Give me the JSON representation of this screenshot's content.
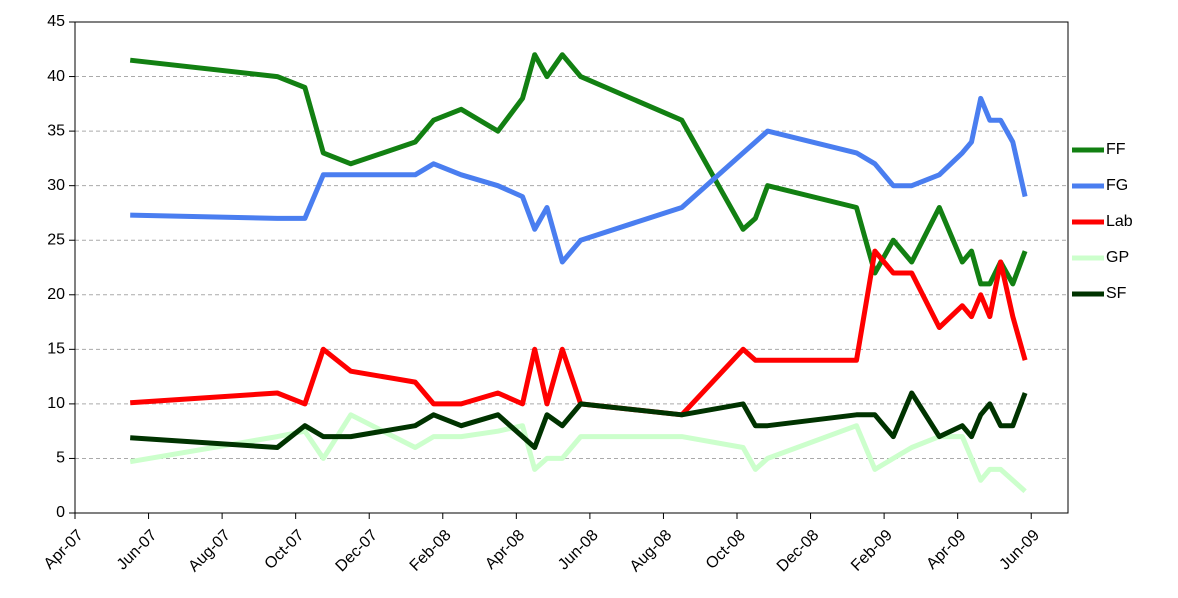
{
  "chart_data": {
    "type": "line",
    "x": [
      "2007-05",
      "2007-09",
      "2007-10",
      "2007-10",
      "2007-11",
      "2008-01",
      "2008-01",
      "2008-02",
      "2008-03",
      "2008-04",
      "2008-04",
      "2008-04",
      "2008-05",
      "2008-05",
      "2008-08",
      "2008-10",
      "2008-10",
      "2008-10",
      "2009-01",
      "2009-01",
      "2009-02",
      "2009-02",
      "2009-03",
      "2009-04",
      "2009-04",
      "2009-04",
      "2009-04",
      "2009-05",
      "2009-05",
      "2009-05"
    ],
    "series": [
      {
        "name": "FF",
        "color": "#128012",
        "values": [
          41.5,
          40,
          39,
          33,
          32,
          34,
          36,
          37,
          35,
          38,
          42,
          40,
          42,
          40,
          36,
          26,
          27,
          30,
          28,
          22,
          25,
          23,
          28,
          23,
          24,
          21,
          21,
          23,
          21,
          24
        ]
      },
      {
        "name": "FG",
        "color": "#4a7ef0",
        "values": [
          27.3,
          27,
          27,
          31,
          31,
          31,
          32,
          31,
          30,
          29,
          26,
          28,
          23,
          25,
          28,
          33,
          34,
          35,
          33,
          32,
          30,
          30,
          31,
          33,
          34,
          38,
          36,
          36,
          34,
          29
        ]
      },
      {
        "name": "Lab",
        "color": "#ff0000",
        "values": [
          10.1,
          11,
          10,
          15,
          13,
          12,
          10,
          10,
          11,
          10,
          15,
          10,
          15,
          10,
          9,
          15,
          14,
          14,
          14,
          24,
          22,
          22,
          17,
          19,
          18,
          20,
          18,
          23,
          18,
          14
        ]
      },
      {
        "name": "GP",
        "color": "#ccffcc",
        "values": [
          4.7,
          7,
          7.5,
          5,
          9,
          6,
          7,
          7,
          7.5,
          8,
          4,
          5,
          5,
          7,
          7,
          6,
          4,
          5,
          8,
          4,
          5,
          6,
          7,
          7,
          5,
          3,
          4,
          4,
          3,
          2
        ]
      },
      {
        "name": "SF",
        "color": "#003300",
        "values": [
          6.9,
          6,
          8,
          7,
          7,
          8,
          9,
          8,
          9,
          7,
          6,
          9,
          8,
          10,
          9,
          10,
          8,
          8,
          9,
          9,
          7,
          11,
          7,
          8,
          7,
          9,
          10,
          8,
          8,
          11
        ]
      }
    ],
    "xlim": [
      "2007-04",
      "2009-07"
    ],
    "xticks": [
      {
        "value": "2007-04",
        "label": "Apr-07"
      },
      {
        "value": "2007-06",
        "label": "Jun-07"
      },
      {
        "value": "2007-08",
        "label": "Aug-07"
      },
      {
        "value": "2007-10",
        "label": "Oct-07"
      },
      {
        "value": "2007-12",
        "label": "Dec-07"
      },
      {
        "value": "2008-02",
        "label": "Feb-08"
      },
      {
        "value": "2008-04",
        "label": "Apr-08"
      },
      {
        "value": "2008-06",
        "label": "Jun-08"
      },
      {
        "value": "2008-08",
        "label": "Aug-08"
      },
      {
        "value": "2008-10",
        "label": "Oct-08"
      },
      {
        "value": "2008-12",
        "label": "Dec-08"
      },
      {
        "value": "2009-02",
        "label": "Feb-09"
      },
      {
        "value": "2009-04",
        "label": "Apr-09"
      },
      {
        "value": "2009-06",
        "label": "Jun-09"
      }
    ],
    "ylim": [
      0,
      45
    ],
    "yticks": [
      0,
      5,
      10,
      15,
      20,
      25,
      30,
      35,
      40,
      45
    ],
    "grid": true,
    "legend": "right"
  }
}
